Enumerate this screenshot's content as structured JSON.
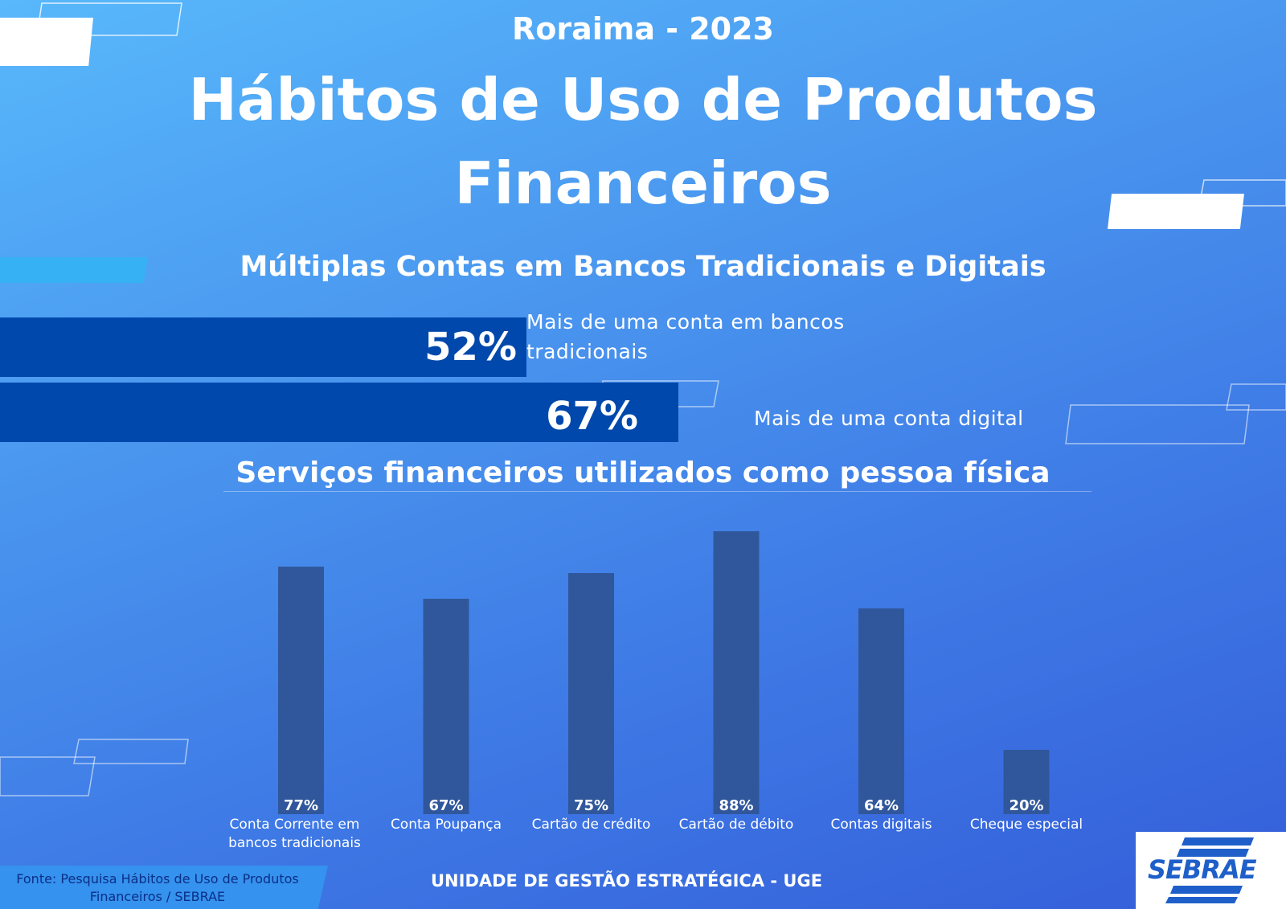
{
  "header": {
    "subtitle": "Roraima - 2023",
    "title": "Hábitos de Uso de Produtos Financeiros"
  },
  "section1": {
    "title": "Múltiplas Contas em Bancos Tradicionais e Digitais",
    "items": [
      {
        "value_label": "52%",
        "label": "Mais de uma conta em bancos tradicionais"
      },
      {
        "value_label": "67%",
        "label": "Mais de uma conta digital"
      }
    ]
  },
  "section2": {
    "title": "Serviços financeiros utilizados como pessoa física"
  },
  "chart_data": [
    {
      "type": "bar",
      "orientation": "horizontal",
      "title": "Múltiplas Contas em Bancos Tradicionais e Digitais",
      "categories": [
        "Mais de uma conta em bancos tradicionais",
        "Mais de uma conta digital"
      ],
      "values": [
        52,
        67
      ],
      "value_labels": [
        "52%",
        "67%"
      ],
      "xlim": [
        0,
        100
      ],
      "grid": false
    },
    {
      "type": "bar",
      "orientation": "vertical",
      "title": "Serviços financeiros utilizados como pessoa física",
      "categories": [
        "Conta Corrente em bancos tradicionais",
        "Conta Poupança",
        "Cartão de crédito",
        "Cartão de débito",
        "Contas digitais",
        "Cheque especial"
      ],
      "category_lines": [
        [
          "Conta Corrente em",
          "bancos tradicionais"
        ],
        [
          "Conta Poupança"
        ],
        [
          "Cartão de crédito"
        ],
        [
          "Cartão de débito"
        ],
        [
          "Contas digitais"
        ],
        [
          "Cheque especial"
        ]
      ],
      "values": [
        77,
        67,
        75,
        88,
        64,
        20
      ],
      "value_labels": [
        "77%",
        "67%",
        "75%",
        "88%",
        "64%",
        "20%"
      ],
      "ylim": [
        0,
        100
      ],
      "grid": false
    }
  ],
  "footer": {
    "source": "Fonte: Pesquisa Hábitos de Uso de Produtos Financeiros / SEBRAE",
    "unit": "UNIDADE DE GESTÃO ESTRATÉGICA - UGE"
  },
  "logo": {
    "text": "SEBRAE"
  },
  "colors": {
    "bar_horizontal": "#0148ac",
    "bar_vertical": "#30579b",
    "background_top": "#58b8fb",
    "background_bottom": "#345ed9"
  }
}
